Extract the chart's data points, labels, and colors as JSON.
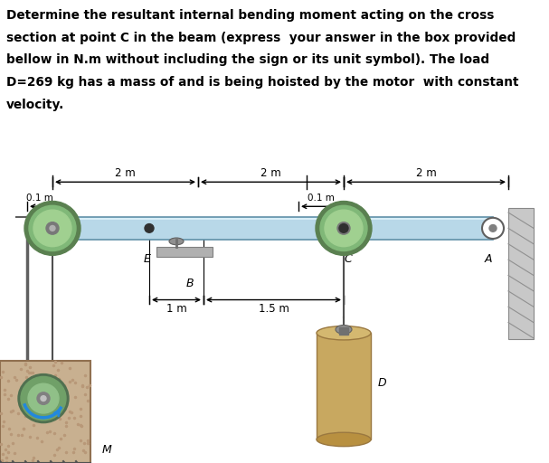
{
  "title_lines": [
    "Determine the resultant internal bending moment acting on the cross",
    "section at point C in the beam (express  your answer in the box provided",
    "bellow in N.m without including the sign or its unit symbol). The load",
    "D=269 kg has a mass of and is being hoisted by the motor  with constant",
    "velocity."
  ],
  "background_color": "#ffffff",
  "text_color": "#000000",
  "beam_color": "#b8d8e8",
  "beam_edge_color": "#6090a8",
  "pulley_outer_color": "#5a8050",
  "pulley_mid_color": "#80b878",
  "pulley_inner_color": "#a0d090",
  "pulley_hub_color": "#787878",
  "wall_color": "#c8c8c8",
  "wall_hatch_color": "#909090",
  "motor_body_color": "#c8b090",
  "motor_texture_color": "#b89878",
  "motor_wheel_color": "#609060",
  "load_color": "#c8a860",
  "load_top_color": "#d4b870",
  "rope_color": "#505050",
  "dim_color": "#000000",
  "label_color": "#000000"
}
